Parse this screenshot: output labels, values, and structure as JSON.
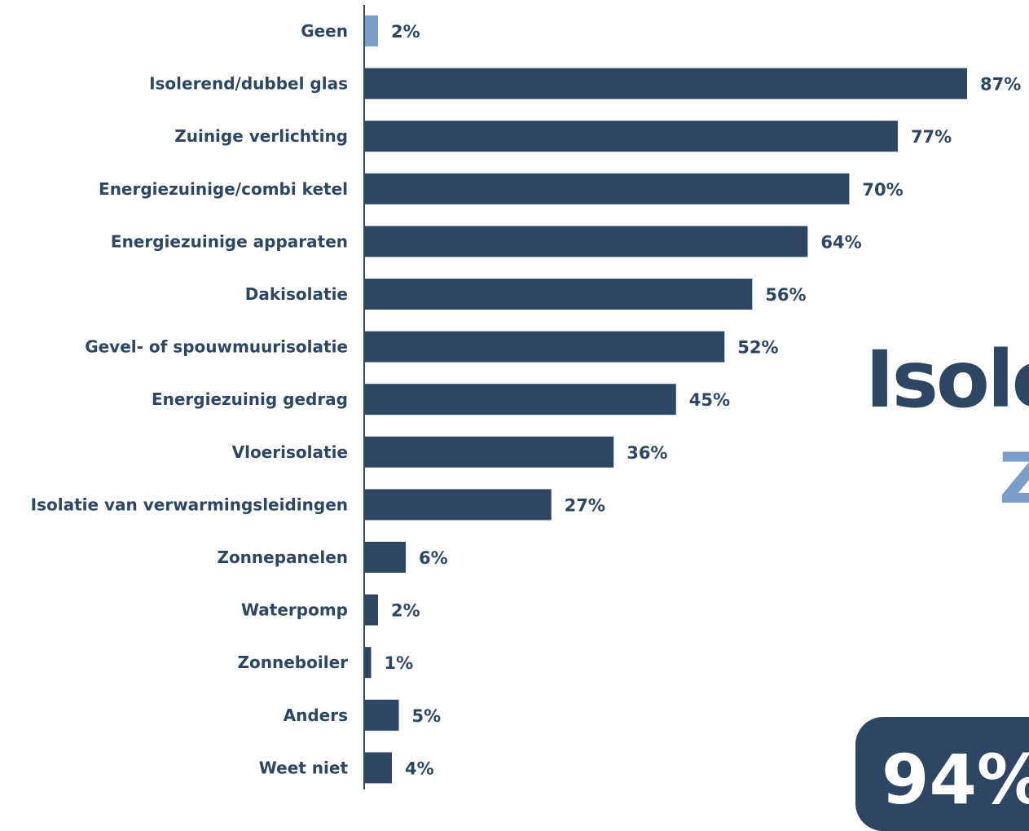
{
  "chart_data": {
    "type": "bar",
    "orientation": "horizontal",
    "categories": [
      "Geen",
      "Isolerend/dubbel glas",
      "Zuinige verlichting",
      "Energiezuinige/combi ketel",
      "Energiezuinige apparaten",
      "Dakisolatie",
      "Gevel- of spouwmuurisolatie",
      "Energiezuinig gedrag",
      "Vloerisolatie",
      "Isolatie van verwarmingsleidingen",
      "Zonnepanelen",
      "Waterpomp",
      "Zonneboiler",
      "Anders",
      "Weet niet"
    ],
    "values": [
      2,
      87,
      77,
      70,
      64,
      56,
      52,
      45,
      36,
      27,
      6,
      2,
      1,
      5,
      4
    ],
    "value_labels": [
      "2%",
      "87%",
      "77%",
      "70%",
      "64%",
      "56%",
      "52%",
      "45%",
      "36%",
      "27%",
      "6%",
      "2%",
      "1%",
      "5%",
      "4%"
    ],
    "highlight_index": 0,
    "colors": {
      "bar": "#2d4663",
      "highlight": "#7a9ec8",
      "axis": "#2d4663"
    },
    "xlim": [
      0,
      87
    ],
    "grid": false,
    "legend": "none"
  },
  "side_panel": {
    "title_fragment": "Isole",
    "subtitle_fragment": "Z",
    "stat_fragment": "94%"
  }
}
